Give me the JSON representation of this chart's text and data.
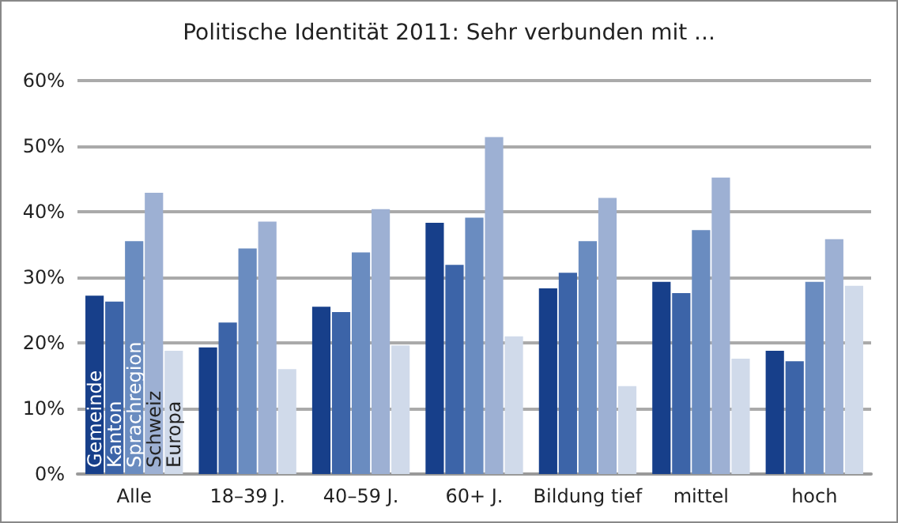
{
  "chart_data": {
    "type": "bar",
    "title": "Politische Identität 2011: Sehr verbunden mit ...",
    "categories": [
      "Alle",
      "18–39 J.",
      "40–59 J.",
      "60+ J.",
      "Bildung tief",
      "mittel",
      "hoch"
    ],
    "series": [
      {
        "name": "Gemeinde",
        "color": "#173f8a",
        "values": [
          27.2,
          19.3,
          25.5,
          38.3,
          28.3,
          29.3,
          18.8
        ]
      },
      {
        "name": "Kanton",
        "color": "#3c64a8",
        "values": [
          26.3,
          23.1,
          24.7,
          31.9,
          30.7,
          27.6,
          17.2
        ]
      },
      {
        "name": "Sprachregion",
        "color": "#6a8cc0",
        "values": [
          35.5,
          34.4,
          33.8,
          39.1,
          35.5,
          37.2,
          29.3
        ]
      },
      {
        "name": "Schweiz",
        "color": "#9db0d3",
        "values": [
          42.9,
          38.5,
          40.4,
          51.4,
          42.1,
          45.2,
          35.8
        ]
      },
      {
        "name": "Europa",
        "color": "#d0daea",
        "values": [
          18.8,
          16.0,
          19.6,
          21.0,
          13.4,
          17.6,
          28.7
        ]
      }
    ],
    "ylim": [
      0,
      60
    ],
    "yticks": [
      {
        "value": 0,
        "label": "0%"
      },
      {
        "value": 10,
        "label": "10%"
      },
      {
        "value": 20,
        "label": "20%"
      },
      {
        "value": 30,
        "label": "30%"
      },
      {
        "value": 40,
        "label": "40%"
      },
      {
        "value": 50,
        "label": "50%"
      },
      {
        "value": 60,
        "label": "60%"
      }
    ],
    "grid": "y",
    "legend": false
  }
}
